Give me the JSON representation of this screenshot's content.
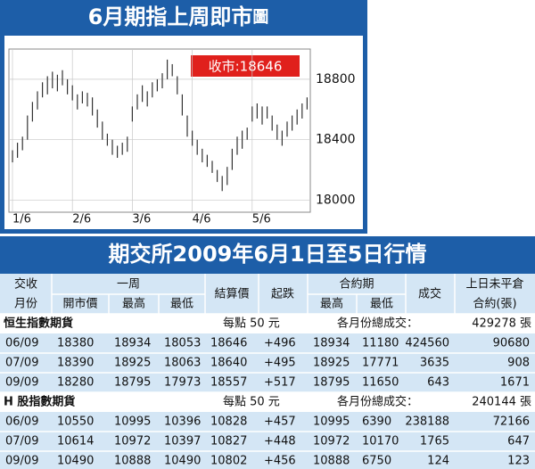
{
  "chart_data": {
    "type": "hilo",
    "title": "6月期指上周即市",
    "title_suffix": "圖",
    "annotation": "收市:18646",
    "categories": [
      "1/6",
      null,
      null,
      null,
      null,
      null,
      null,
      null,
      null,
      null,
      null,
      null,
      "2/6",
      null,
      null,
      null,
      null,
      null,
      null,
      null,
      null,
      null,
      null,
      null,
      "3/6",
      null,
      null,
      null,
      null,
      null,
      null,
      null,
      null,
      null,
      null,
      null,
      "4/6",
      null,
      null,
      null,
      null,
      null,
      null,
      null,
      null,
      null,
      null,
      null,
      "5/6",
      null,
      null,
      null,
      null,
      null,
      null,
      null,
      null,
      null,
      null,
      null
    ],
    "series": [
      {
        "name": "high",
        "color": "#333333",
        "values": [
          18330,
          18380,
          18420,
          18560,
          18650,
          18720,
          18780,
          18820,
          18850,
          18830,
          18860,
          18800,
          18760,
          18700,
          18720,
          18710,
          18680,
          18600,
          18520,
          18440,
          18400,
          18360,
          18380,
          18420,
          18620,
          18700,
          18760,
          18720,
          18780,
          18800,
          18840,
          18930,
          18900,
          18820,
          18700,
          18560,
          18460,
          18400,
          18340,
          18300,
          18260,
          18200,
          18160,
          18220,
          18340,
          18420,
          18460,
          18480,
          18620,
          18640,
          18620,
          18620,
          18560,
          18500,
          18460,
          18520,
          18560,
          18600,
          18640,
          18680
        ]
      },
      {
        "name": "low",
        "color": "#333333",
        "values": [
          18250,
          18280,
          18330,
          18400,
          18520,
          18600,
          18680,
          18700,
          18740,
          18720,
          18760,
          18700,
          18660,
          18600,
          18640,
          18620,
          18560,
          18480,
          18400,
          18360,
          18300,
          18280,
          18300,
          18320,
          18520,
          18600,
          18650,
          18620,
          18680,
          18720,
          18740,
          18800,
          18820,
          18700,
          18560,
          18420,
          18360,
          18300,
          18250,
          18220,
          18180,
          18120,
          18060,
          18100,
          18200,
          18300,
          18340,
          18400,
          18520,
          18540,
          18500,
          18540,
          18460,
          18400,
          18360,
          18420,
          18460,
          18500,
          18540,
          18600
        ]
      }
    ],
    "ylim": [
      17920,
      19000
    ],
    "yticks": [
      18000,
      18400,
      18800
    ],
    "grid": true
  },
  "table": {
    "title": "期交所2009年6月1日至5日行情",
    "headers": {
      "delivery1": "交收",
      "delivery2": "月份",
      "week": "一周",
      "open": "開市價",
      "high": "最高",
      "low": "最低",
      "settle": "結算價",
      "change": "起跌",
      "contract": "合約期",
      "c_high": "最高",
      "c_low": "最低",
      "volume": "成交",
      "oi1": "上日未平倉",
      "oi2": "合約(張)"
    },
    "sections": [
      {
        "name": "恒生指數期貨",
        "note": "每點 50 元",
        "total_label": "各月份總成交：",
        "total": "429278 張",
        "rows": [
          [
            "06/09",
            "18380",
            "18934",
            "18053",
            "18646",
            "+496",
            "18934",
            "11180",
            "424560",
            "90680"
          ],
          [
            "07/09",
            "18390",
            "18925",
            "18063",
            "18640",
            "+495",
            "18925",
            "17771",
            "3635",
            "908"
          ],
          [
            "09/09",
            "18280",
            "18795",
            "17973",
            "18557",
            "+517",
            "18795",
            "11650",
            "643",
            "1671"
          ]
        ]
      },
      {
        "name": "H 股指數期貨",
        "note": "每點 50 元",
        "total_label": "各月份總成交：",
        "total": "240144 張",
        "rows": [
          [
            "06/09",
            "10550",
            "10995",
            "10396",
            "10828",
            "+457",
            "10995",
            "6390",
            "238188",
            "72166"
          ],
          [
            "07/09",
            "10614",
            "10972",
            "10397",
            "10827",
            "+448",
            "10972",
            "10170",
            "1765",
            "647"
          ],
          [
            "09/09",
            "10490",
            "10888",
            "10490",
            "10802",
            "+456",
            "10888",
            "6750",
            "124",
            "123"
          ]
        ]
      }
    ]
  }
}
